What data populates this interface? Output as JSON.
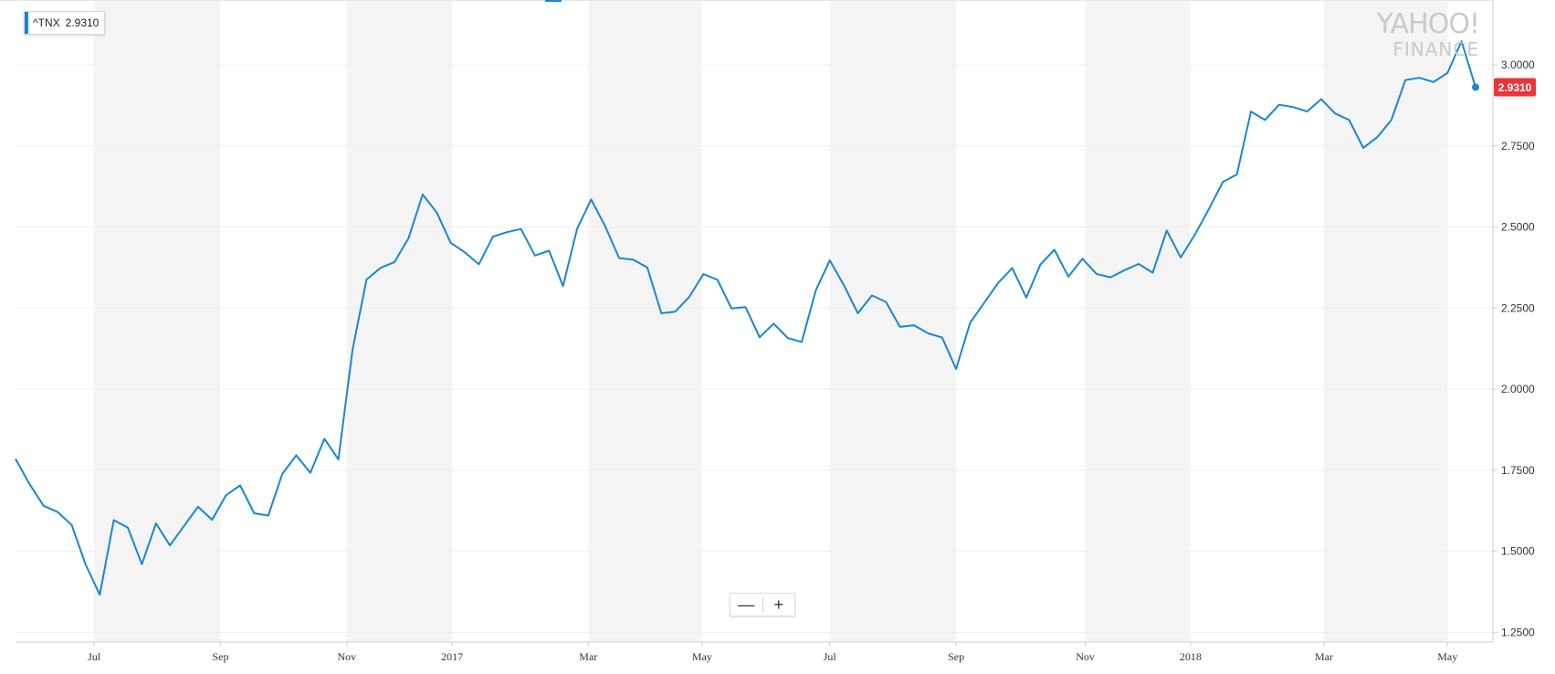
{
  "legend": {
    "symbol": "^TNX",
    "value": "2.9310"
  },
  "watermark": {
    "line1": "YAHOO!",
    "line2": "FINANCE"
  },
  "zoom": {
    "minus": "—",
    "plus": "+"
  },
  "colors": {
    "line": "#1a85d6",
    "band": "#f4f4f4",
    "last_badge": "#e8353b",
    "grid": "#efefef",
    "axis": "#cfcfcf"
  },
  "chart_data": {
    "type": "line",
    "series": [
      {
        "name": "^TNX",
        "values": [
          1.785,
          1.707,
          1.64,
          1.621,
          1.581,
          1.458,
          1.366,
          1.596,
          1.573,
          1.46,
          1.586,
          1.518,
          1.578,
          1.637,
          1.597,
          1.673,
          1.703,
          1.617,
          1.61,
          1.738,
          1.796,
          1.742,
          1.847,
          1.783,
          2.12,
          2.338,
          2.374,
          2.392,
          2.466,
          2.6,
          2.545,
          2.451,
          2.422,
          2.385,
          2.47,
          2.484,
          2.494,
          2.412,
          2.427,
          2.318,
          2.494,
          2.585,
          2.502,
          2.404,
          2.399,
          2.375,
          2.234,
          2.239,
          2.285,
          2.355,
          2.337,
          2.249,
          2.253,
          2.16,
          2.202,
          2.158,
          2.145,
          2.304,
          2.397,
          2.321,
          2.234,
          2.289,
          2.269,
          2.192,
          2.197,
          2.172,
          2.159,
          2.062,
          2.205,
          2.266,
          2.328,
          2.373,
          2.282,
          2.384,
          2.43,
          2.347,
          2.402,
          2.355,
          2.345,
          2.367,
          2.386,
          2.359,
          2.489,
          2.406,
          2.476,
          2.555,
          2.639,
          2.662,
          2.856,
          2.83,
          2.877,
          2.87,
          2.856,
          2.894,
          2.85,
          2.83,
          2.744,
          2.777,
          2.83,
          2.953,
          2.96,
          2.947,
          2.975,
          3.073,
          2.931
        ]
      }
    ],
    "last_value": "2.9310",
    "y_ticks": [
      "1.2500",
      "1.5000",
      "1.7500",
      "2.0000",
      "2.2500",
      "2.5000",
      "2.7500",
      "3.0000"
    ],
    "ylim": [
      1.22,
      3.2
    ],
    "x_ticks": [
      {
        "label": "Jul",
        "index": 5.6
      },
      {
        "label": "Sep",
        "index": 14.6
      },
      {
        "label": "Nov",
        "index": 23.6
      },
      {
        "label": "2017",
        "index": 31.1
      },
      {
        "label": "Mar",
        "index": 40.8
      },
      {
        "label": "May",
        "index": 48.9
      },
      {
        "label": "Jul",
        "index": 58.0
      },
      {
        "label": "Sep",
        "index": 67.0
      },
      {
        "label": "Nov",
        "index": 76.2
      },
      {
        "label": "2018",
        "index": 83.7
      },
      {
        "label": "Mar",
        "index": 93.2
      },
      {
        "label": "May",
        "index": 102.0
      }
    ],
    "shaded_bands": [
      [
        5.6,
        14.6
      ],
      [
        23.6,
        31.1
      ],
      [
        40.8,
        48.9
      ],
      [
        58.0,
        67.0
      ],
      [
        76.2,
        83.7
      ],
      [
        93.2,
        102.0
      ]
    ],
    "grid": true,
    "legend_position": "top-left"
  }
}
